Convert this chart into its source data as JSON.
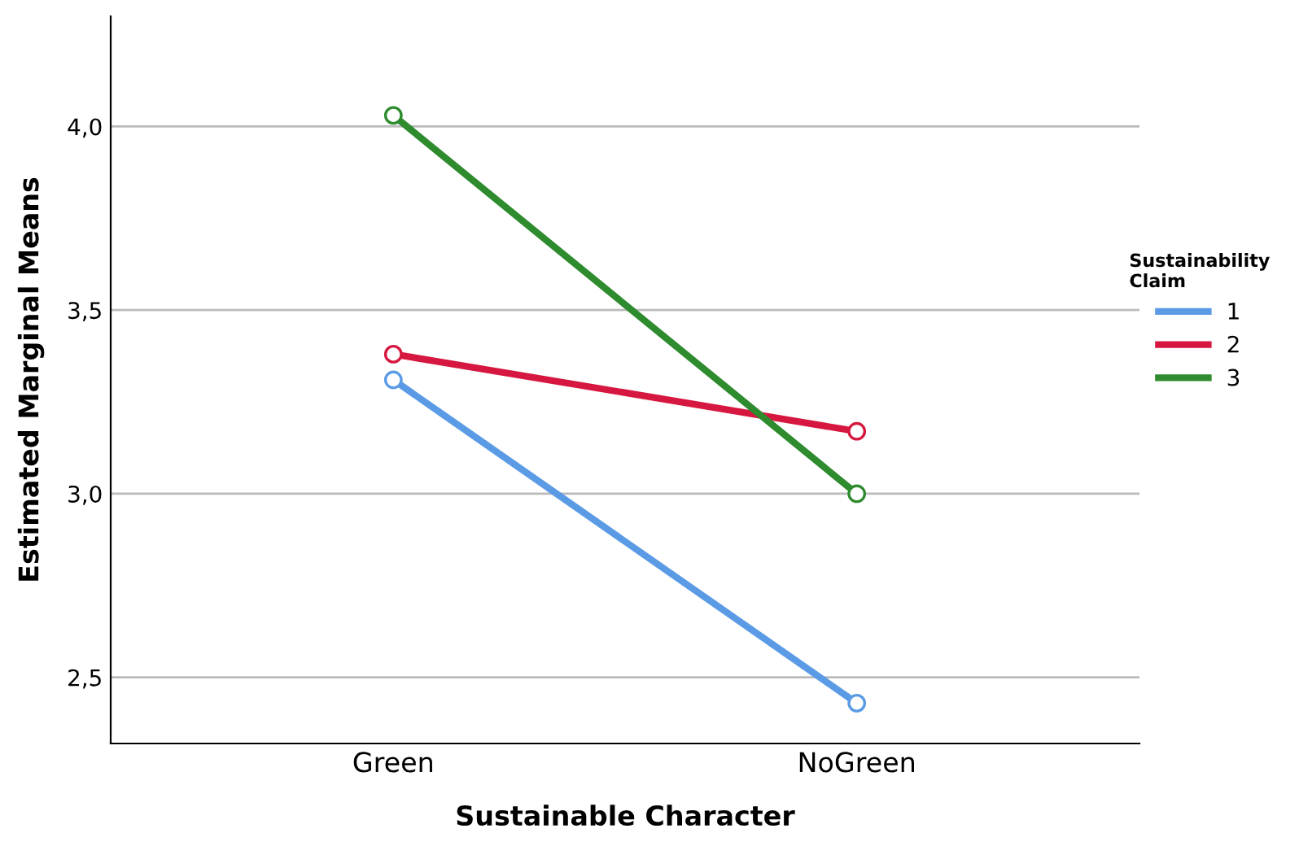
{
  "chart_data": {
    "type": "line",
    "xlabel": "Sustainable Character",
    "ylabel": "Estimated Marginal Means",
    "legend_title": "Sustainability\nClaim",
    "categories": [
      "Green",
      "NoGreen"
    ],
    "series": [
      {
        "name": "1",
        "color": "#5b9be6",
        "values": [
          3.31,
          2.43
        ]
      },
      {
        "name": "2",
        "color": "#d6173f",
        "values": [
          3.38,
          3.17
        ]
      },
      {
        "name": "3",
        "color": "#2e8b2e",
        "values": [
          4.03,
          3.0
        ]
      }
    ],
    "ylim": [
      2.32,
      4.3
    ],
    "yticks": [
      {
        "value": 2.5,
        "label": "2,5"
      },
      {
        "value": 3.0,
        "label": "3,0"
      },
      {
        "value": 3.5,
        "label": "3,5"
      },
      {
        "value": 4.0,
        "label": "4,0"
      }
    ],
    "grid": "y",
    "legend": "right",
    "marker": "circle",
    "line_style": "solid"
  }
}
